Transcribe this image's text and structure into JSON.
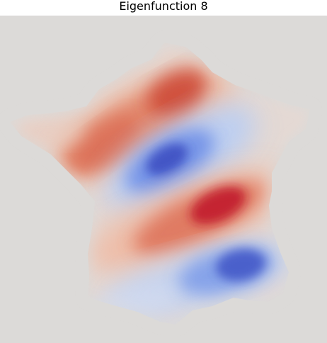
{
  "title": "Eigenfunction 8",
  "colors": {
    "background": "#dcdad8",
    "positive": "#c0152a",
    "negative": "#3a4cc0",
    "colormap": "coolwarm"
  }
}
